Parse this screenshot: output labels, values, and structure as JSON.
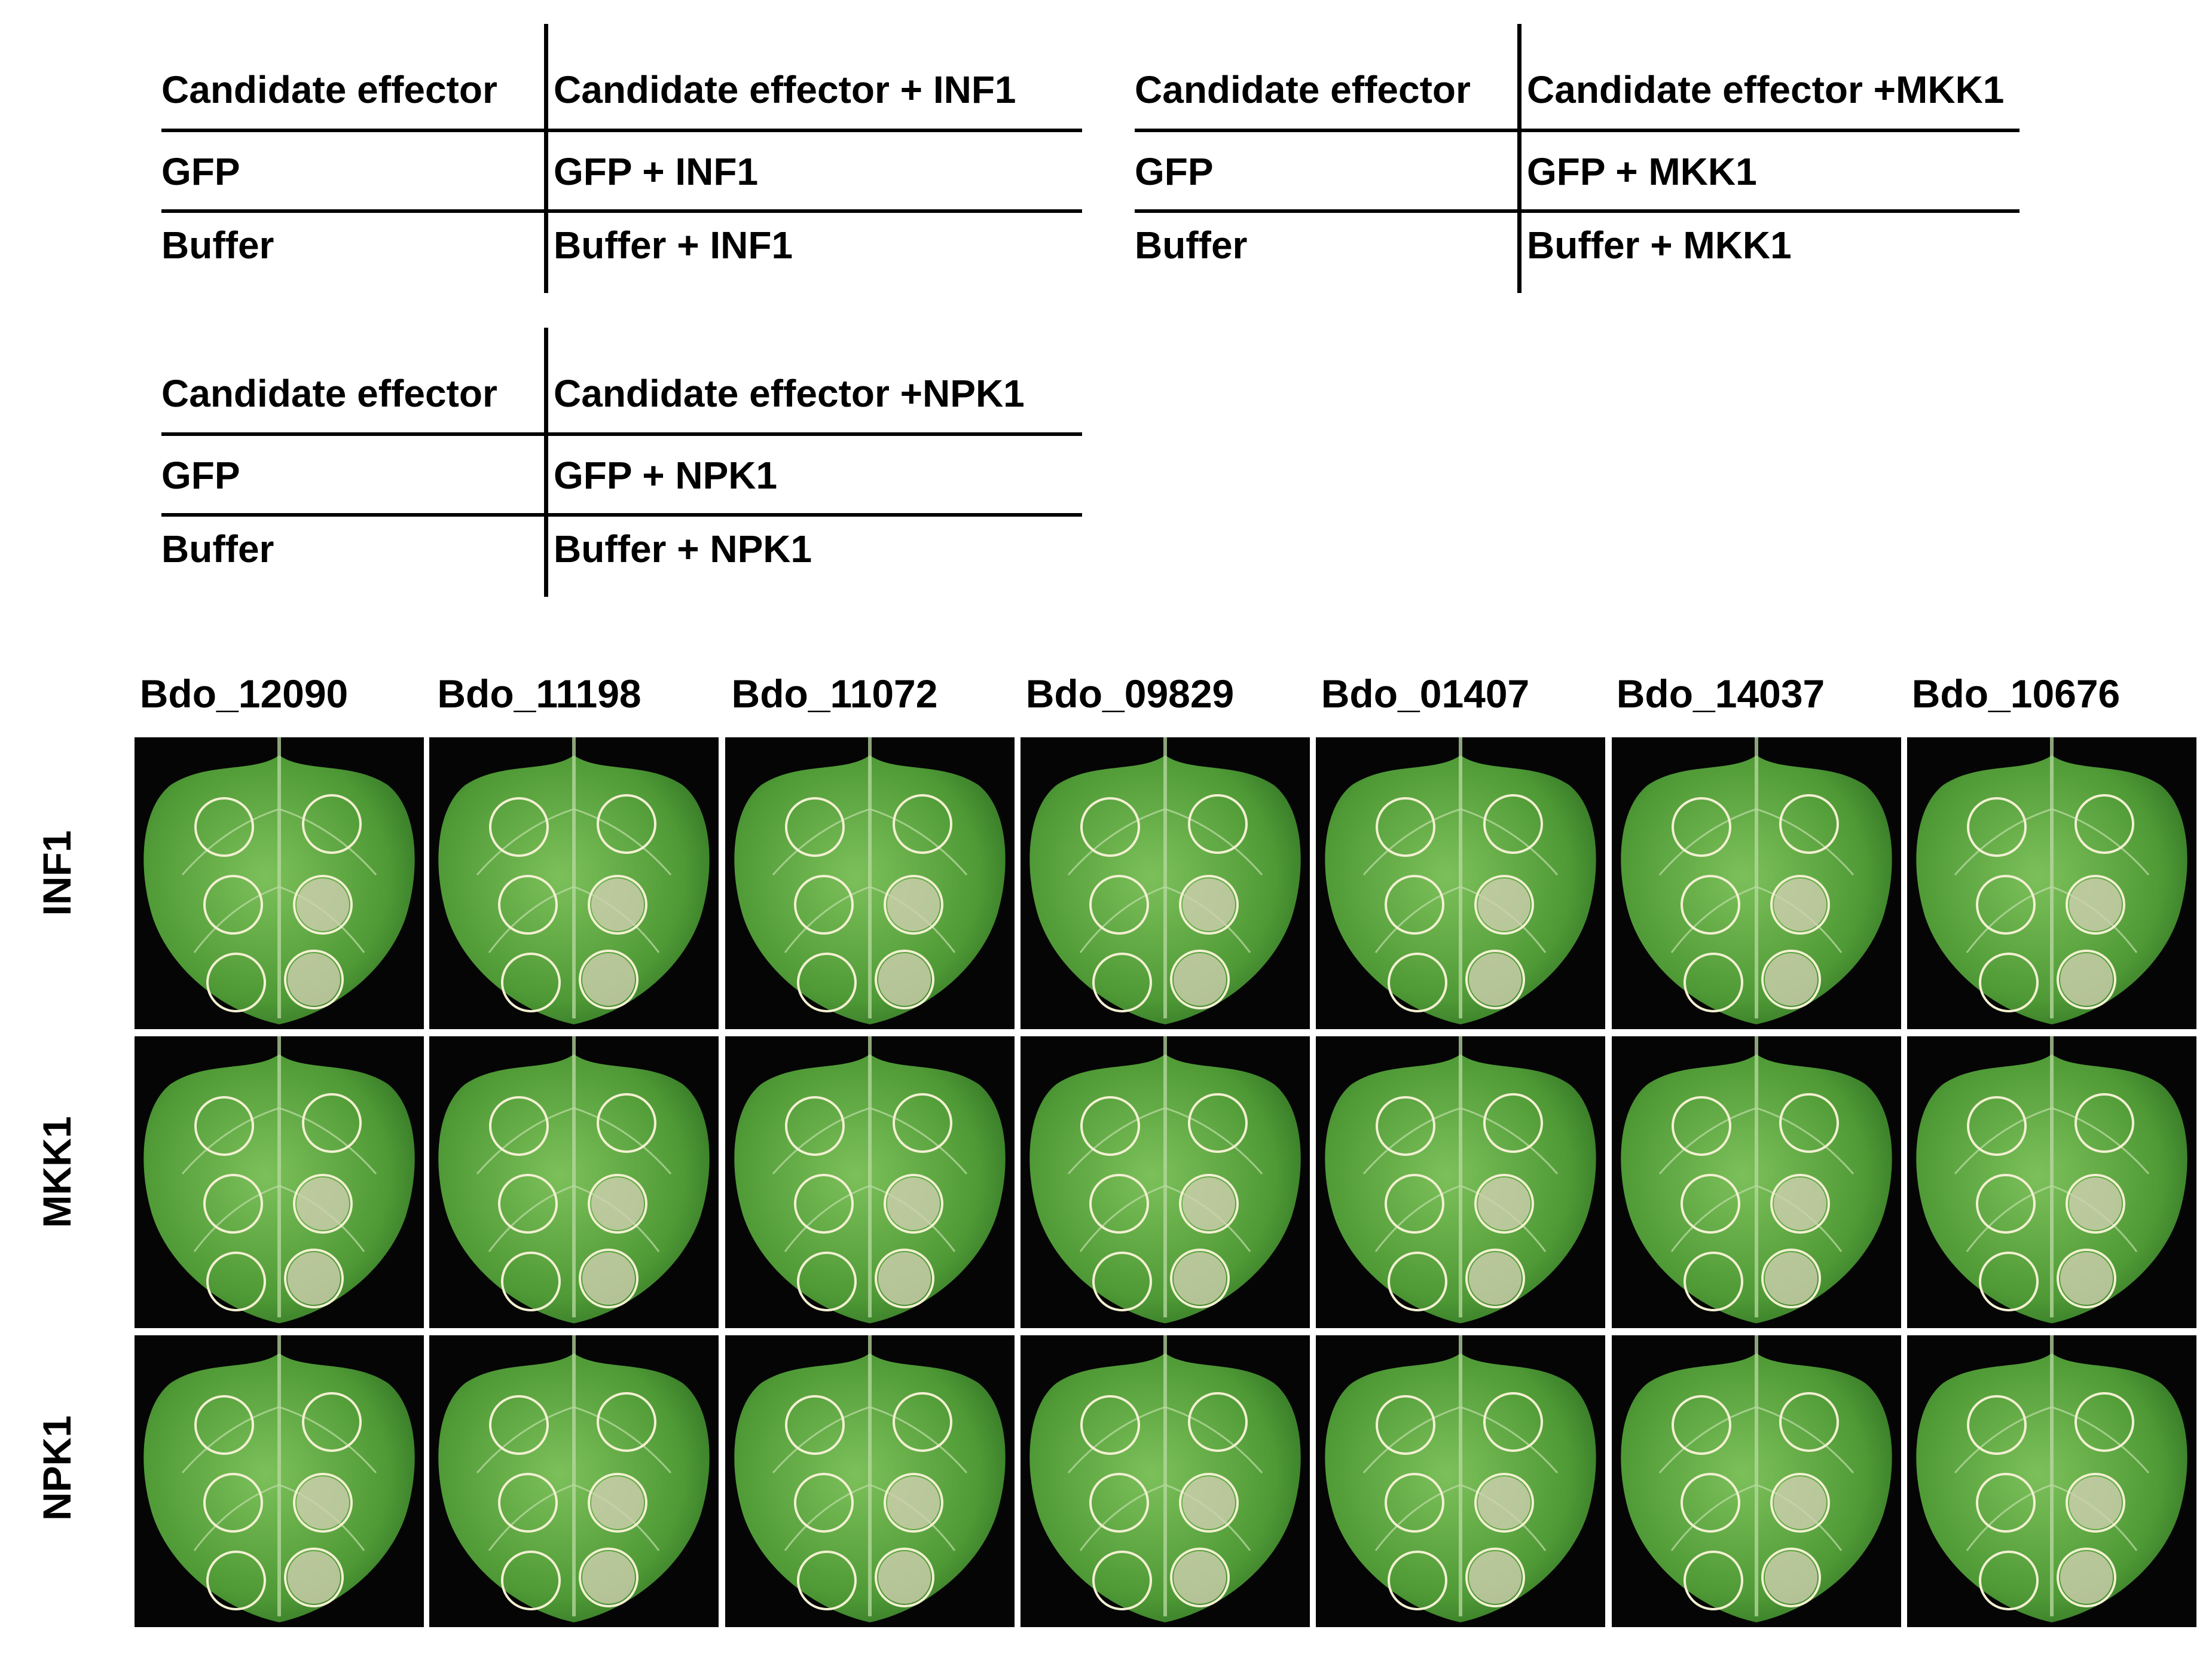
{
  "legends": [
    {
      "header": [
        "Candidate effector",
        "Candidate effector + INF1"
      ],
      "rows": [
        [
          "GFP",
          "GFP + INF1"
        ],
        [
          "Buffer",
          "Buffer + INF1"
        ]
      ]
    },
    {
      "header": [
        "Candidate effector",
        "Candidate effector +MKK1"
      ],
      "rows": [
        [
          "GFP",
          "GFP + MKK1"
        ],
        [
          "Buffer",
          "Buffer + MKK1"
        ]
      ]
    },
    {
      "header": [
        "Candidate effector",
        "Candidate effector +NPK1"
      ],
      "rows": [
        [
          "GFP",
          "GFP + NPK1"
        ],
        [
          "Buffer",
          "Buffer + NPK1"
        ]
      ]
    }
  ],
  "columns": [
    "Bdo_12090",
    "Bdo_11198",
    "Bdo_11072",
    "Bdo_09829",
    "Bdo_01407",
    "Bdo_14037",
    "Bdo_10676"
  ],
  "rows": [
    "INF1",
    "MKK1",
    "NPK1"
  ],
  "colors": {
    "leaf": "#4f9a36",
    "leaf_light": "#7cc05a",
    "leaf_dark": "#2f6f22",
    "vein": "#b9d9a2",
    "circle": "#f3f0d2",
    "necrosis": "#cfcfb0",
    "panel_background": "#050505"
  }
}
